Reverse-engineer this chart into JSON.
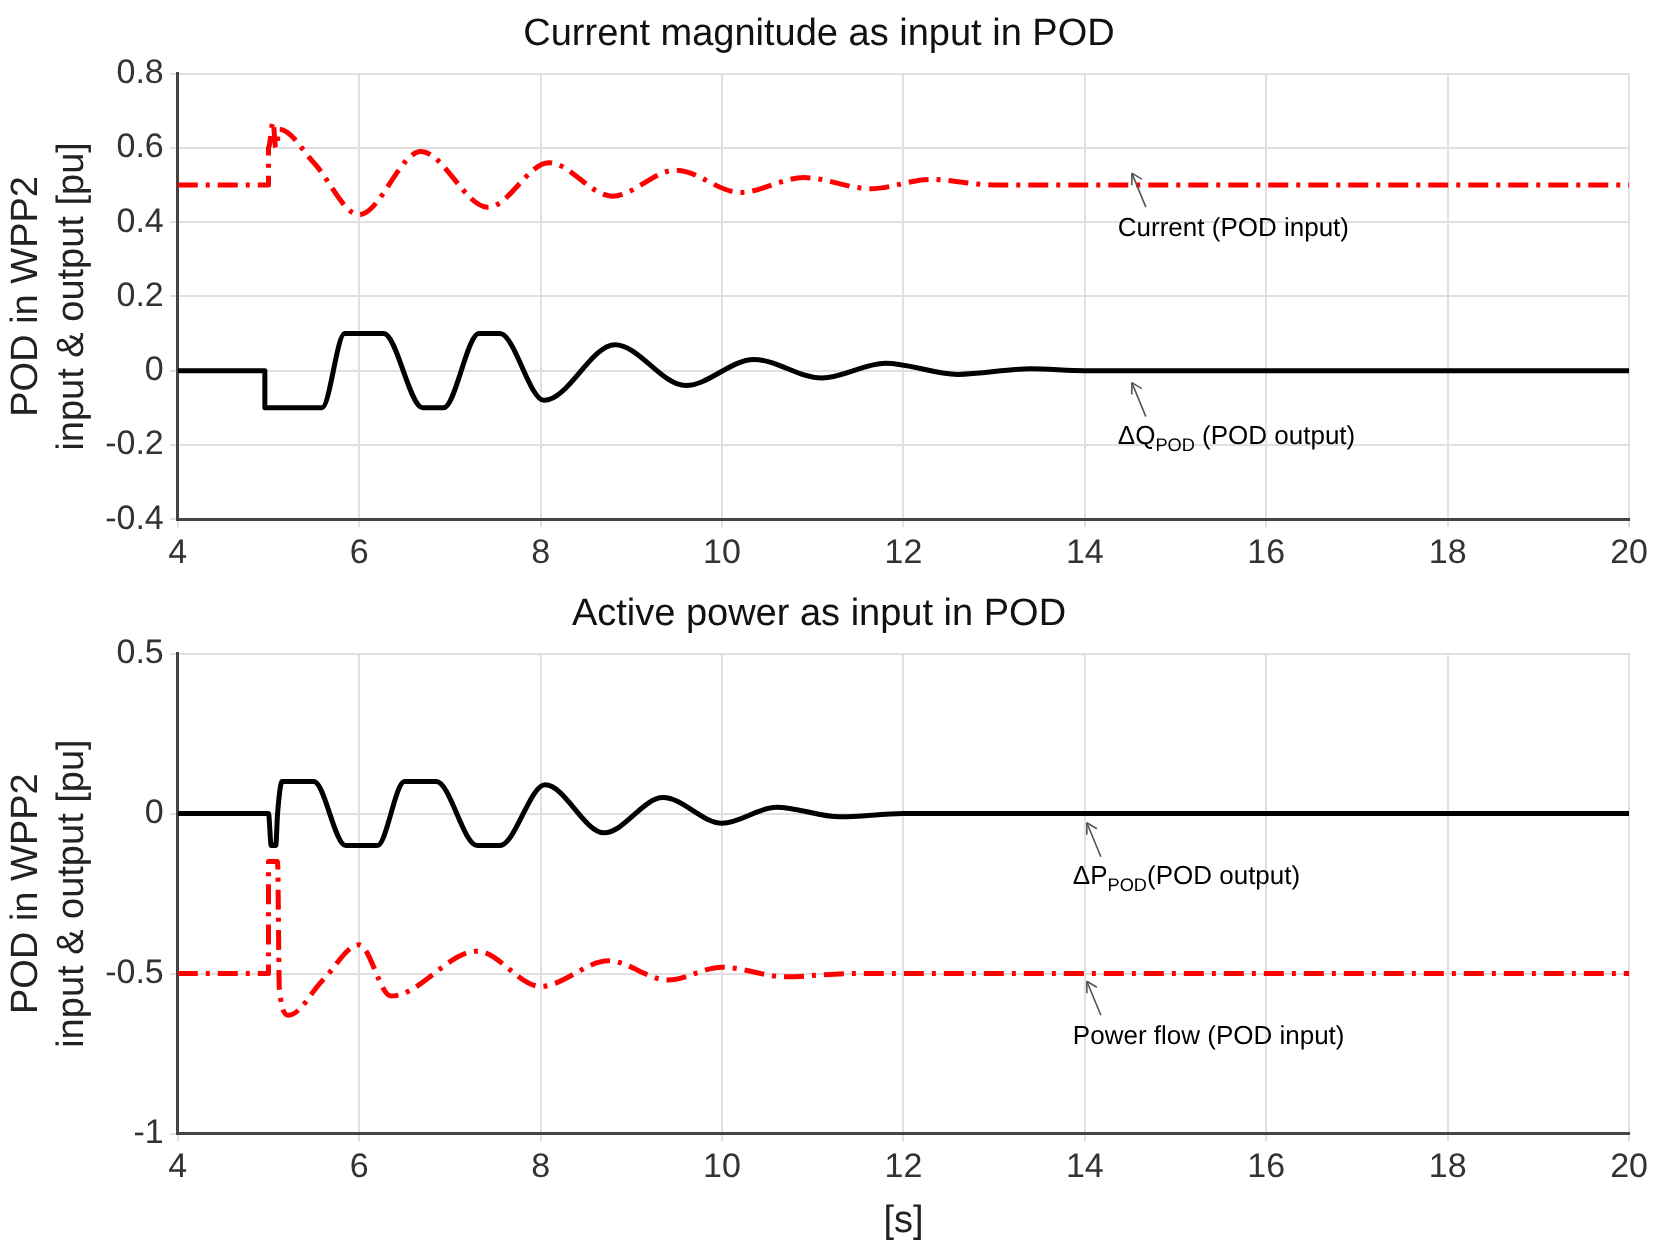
{
  "chart_data": [
    {
      "type": "line",
      "title": "Current magnitude as input in POD",
      "ylabel": "POD in WPP2\ninput & output [pu]",
      "xlim": [
        4,
        20
      ],
      "xticks": [
        4,
        6,
        8,
        10,
        12,
        14,
        16,
        18,
        20
      ],
      "ylim": [
        -0.4,
        0.8
      ],
      "yticks": [
        -0.4,
        -0.2,
        0,
        0.2,
        0.4,
        0.6,
        0.8
      ],
      "grid": true,
      "legend": false,
      "series": [
        {
          "color": "#ff0000",
          "line_style": "dashed",
          "x": [
            4,
            5.0,
            5.0,
            5.05,
            5.08,
            5.12,
            5.5,
            6.0,
            6.68,
            7.42,
            8.09,
            8.79,
            9.49,
            10.2,
            10.9,
            11.64,
            12.3,
            13.0,
            14,
            20
          ],
          "values": [
            0.5,
            0.5,
            0.6,
            0.67,
            0.6,
            0.65,
            0.56,
            0.42,
            0.59,
            0.44,
            0.56,
            0.47,
            0.54,
            0.48,
            0.52,
            0.49,
            0.515,
            0.5,
            0.5,
            0.5
          ]
        },
        {
          "color": "#000000",
          "line_style": "solid",
          "x": [
            4,
            4.96,
            4.96,
            5.59,
            5.84,
            6.27,
            6.7,
            6.93,
            7.32,
            7.55,
            8.04,
            8.82,
            9.6,
            10.35,
            11.1,
            11.8,
            12.6,
            13.4,
            14,
            20
          ],
          "values": [
            0,
            0,
            -0.1,
            -0.1,
            0.1,
            0.1,
            -0.1,
            -0.1,
            0.1,
            0.1,
            -0.08,
            0.07,
            -0.04,
            0.03,
            -0.02,
            0.02,
            -0.01,
            0.005,
            0,
            0
          ]
        }
      ],
      "annotations": [
        "Current (POD input)",
        "ΔQ$_{POD}$ (POD output)"
      ]
    },
    {
      "type": "line",
      "title": "Active power as input in POD",
      "xlabel": "[s]",
      "ylabel": "POD in WPP2\ninput & output [pu]",
      "xlim": [
        4,
        20
      ],
      "xticks": [
        4,
        6,
        8,
        10,
        12,
        14,
        16,
        18,
        20
      ],
      "ylim": [
        -1,
        0.5
      ],
      "yticks": [
        -1,
        -0.5,
        0,
        0.5
      ],
      "grid": true,
      "legend": false,
      "series": [
        {
          "color": "#ff0000",
          "line_style": "dashed",
          "x": [
            4,
            5.0,
            5.0,
            5.1,
            5.12,
            5.22,
            5.6,
            6.0,
            6.35,
            7.3,
            8.0,
            8.75,
            9.4,
            10.0,
            10.7,
            11.4,
            20
          ],
          "values": [
            -0.5,
            -0.5,
            -0.15,
            -0.15,
            -0.55,
            -0.63,
            -0.52,
            -0.41,
            -0.57,
            -0.43,
            -0.54,
            -0.46,
            -0.52,
            -0.48,
            -0.51,
            -0.5,
            -0.5
          ]
        },
        {
          "color": "#000000",
          "line_style": "solid",
          "x": [
            4,
            5.0,
            5.03,
            5.08,
            5.1,
            5.15,
            5.5,
            5.85,
            6.2,
            6.5,
            6.85,
            7.3,
            7.55,
            8.05,
            8.7,
            9.35,
            10.0,
            10.6,
            11.3,
            12,
            20
          ],
          "values": [
            0,
            0,
            -0.1,
            -0.1,
            0,
            0.1,
            0.1,
            -0.1,
            -0.1,
            0.1,
            0.1,
            -0.1,
            -0.1,
            0.09,
            -0.06,
            0.05,
            -0.03,
            0.02,
            -0.01,
            0,
            0
          ]
        }
      ],
      "annotations": [
        "ΔP$_{POD}$(POD output)",
        "Power flow (POD input)"
      ]
    }
  ]
}
